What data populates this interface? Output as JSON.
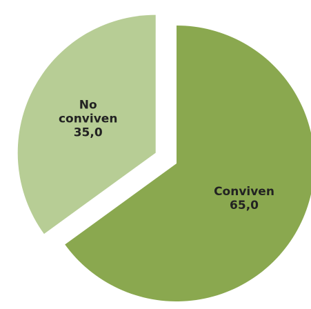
{
  "chart_data": {
    "type": "pie",
    "title": "",
    "slices": [
      {
        "name_lines": [
          "Conviven"
        ],
        "value": 65.0,
        "value_label": "65,0",
        "color": "#8aa84f",
        "exploded": false
      },
      {
        "name_lines": [
          "No",
          "conviven"
        ],
        "value": 35.0,
        "value_label": "35,0",
        "color": "#b7cd95",
        "exploded": true
      }
    ],
    "start": "12 o'clock",
    "direction": "clockwise",
    "legend": "none"
  }
}
